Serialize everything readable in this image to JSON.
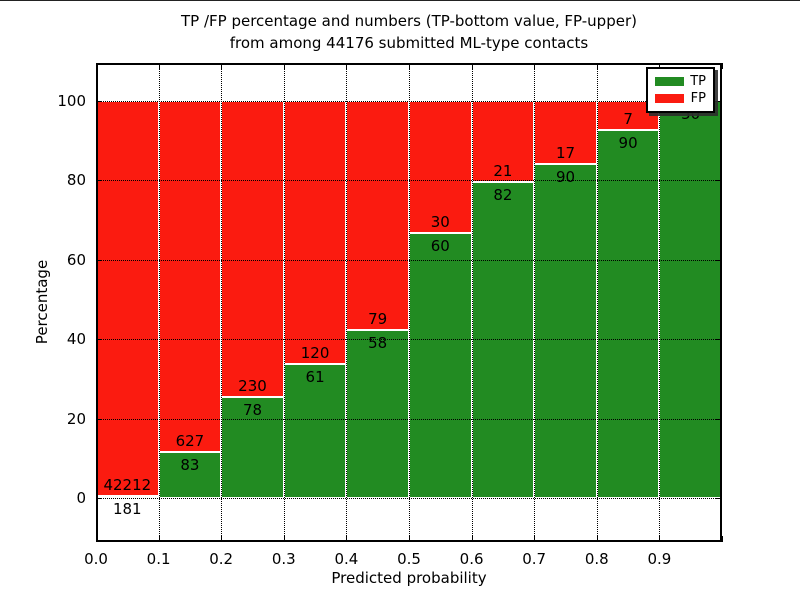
{
  "figure": {
    "title_line1": "TP /FP percentage and numbers (TP-bottom value, FP-upper)",
    "title_line2": "from among 44176 submitted ML-type contacts"
  },
  "axes": {
    "xlabel": "Predicted probability",
    "ylabel": "Percentage",
    "x_tick_labels": [
      "0.0",
      "0.1",
      "0.2",
      "0.3",
      "0.4",
      "0.5",
      "0.6",
      "0.7",
      "0.8",
      "0.9"
    ],
    "y_tick_labels": [
      "0",
      "20",
      "40",
      "60",
      "80",
      "100"
    ],
    "y_tick_values": [
      0,
      20,
      40,
      60,
      80,
      100
    ],
    "xlim": [
      0.0,
      1.0
    ],
    "ylim": [
      -11,
      110
    ]
  },
  "legend": {
    "items": [
      {
        "label": "TP",
        "color": "#228B22"
      },
      {
        "label": "FP",
        "color": "#fb1b10"
      }
    ]
  },
  "colors": {
    "tp": "#228B22",
    "fp": "#fb1b10",
    "grid": "#000000",
    "bar_edge": "#ffffff",
    "text": "#000000"
  },
  "chart_data": {
    "type": "bar",
    "subtype": "stacked-normalized-percentage",
    "title": "TP /FP percentage and numbers (TP-bottom value, FP-upper) from among 44176 submitted ML-type contacts",
    "xlabel": "Predicted probability",
    "ylabel": "Percentage",
    "total_contacts": 44176,
    "bins": [
      "0.0-0.1",
      "0.1-0.2",
      "0.2-0.3",
      "0.3-0.4",
      "0.4-0.5",
      "0.5-0.6",
      "0.6-0.7",
      "0.7-0.8",
      "0.8-0.9",
      "0.9-1.0"
    ],
    "bin_starts": [
      0.0,
      0.1,
      0.2,
      0.3,
      0.4,
      0.5,
      0.6,
      0.7,
      0.8,
      0.9
    ],
    "series": [
      {
        "name": "TP",
        "color": "#228B22",
        "counts": [
          181,
          83,
          78,
          61,
          58,
          60,
          82,
          90,
          90,
          50
        ]
      },
      {
        "name": "FP",
        "color": "#fb1b10",
        "counts": [
          42212,
          627,
          230,
          120,
          79,
          30,
          21,
          17,
          7,
          0
        ]
      }
    ],
    "tp_percent": [
      0.43,
      11.69,
      25.32,
      33.7,
      42.34,
      66.67,
      79.61,
      84.11,
      92.78,
      100.0
    ],
    "fp_count_labels": [
      "42212",
      "627",
      "230",
      "120",
      "79",
      "30",
      "21",
      "17",
      "7",
      ""
    ],
    "tp_count_labels": [
      "181",
      "83",
      "78",
      "61",
      "58",
      "60",
      "82",
      "90",
      "90",
      "50"
    ],
    "grid": true,
    "legend_position": "upper right",
    "ylim": [
      -11,
      110
    ]
  }
}
